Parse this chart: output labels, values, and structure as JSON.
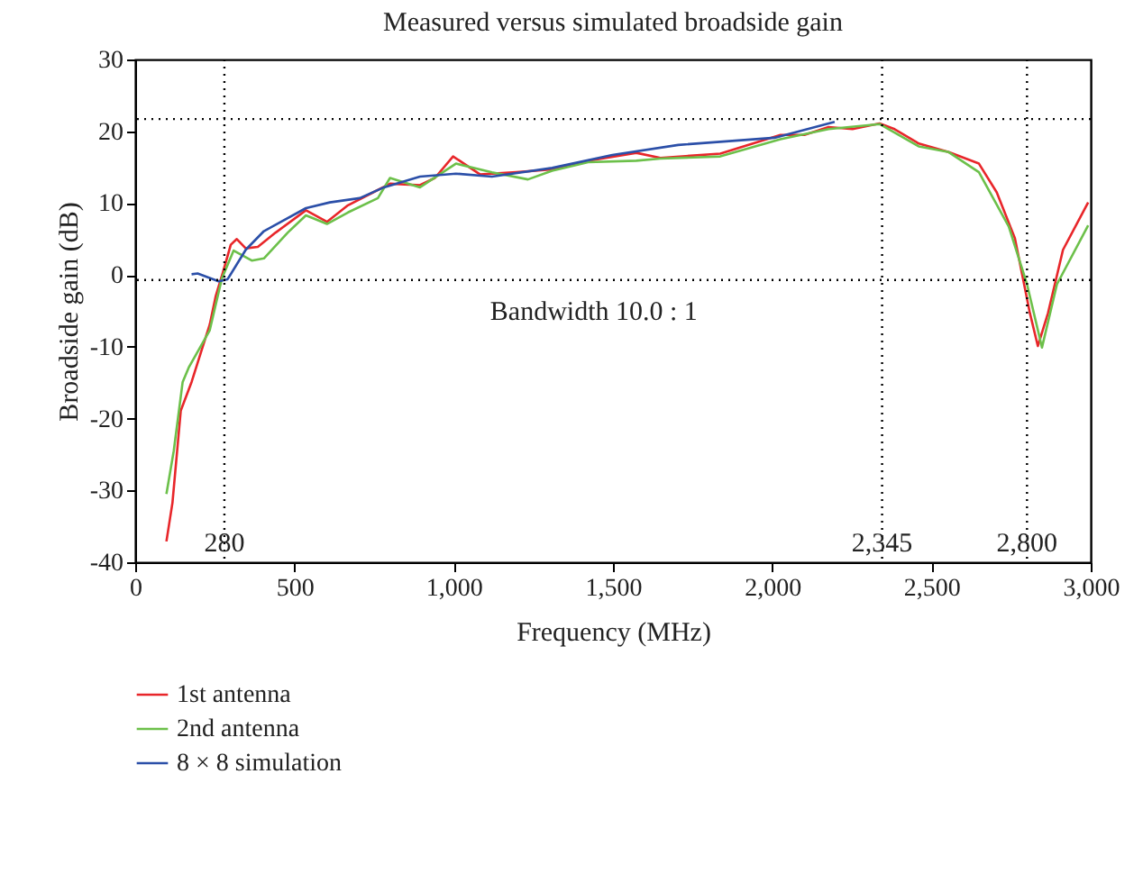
{
  "chart_data": {
    "type": "line",
    "title": "Measured versus simulated broadside gain",
    "xlabel": "Frequency (MHz)",
    "ylabel": "Broadside gain (dB)",
    "xlim": [
      0,
      3000
    ],
    "ylim": [
      -40,
      30
    ],
    "xticks": [
      0,
      500,
      {
        "value": 1000,
        "label": "1,000"
      },
      {
        "value": 1500,
        "label": "1,500"
      },
      {
        "value": 2000,
        "label": "2,000"
      },
      {
        "value": 2500,
        "label": "2,500"
      },
      {
        "value": 3000,
        "label": "3,000"
      }
    ],
    "yticks": [
      -40,
      -30,
      -20,
      -10,
      0,
      10,
      20,
      30
    ],
    "grid": false,
    "legend": "bottom left",
    "line_style": "solid",
    "series": [
      {
        "name": "1st antenna",
        "color": "#e8262a",
        "x": [
          98,
          117,
          143,
          177,
          234,
          253,
          275,
          300,
          319,
          347,
          385,
          441,
          536,
          602,
          668,
          743,
          800,
          894,
          941,
          998,
          1083,
          1196,
          1309,
          1422,
          1573,
          1649,
          1837,
          2026,
          2101,
          2177,
          2252,
          2337,
          2384,
          2460,
          2554,
          2649,
          2705,
          2762,
          2809,
          2834,
          2866,
          2913,
          2992
        ],
        "values": [
          -37.1,
          -31.7,
          -18.9,
          -14.9,
          -6.9,
          -2.9,
          0.3,
          4.2,
          5.0,
          3.7,
          3.9,
          5.9,
          9.0,
          7.4,
          9.7,
          11.4,
          12.7,
          12.5,
          13.5,
          16.5,
          14.0,
          14.3,
          14.7,
          15.9,
          17.0,
          16.3,
          16.9,
          19.5,
          19.5,
          20.6,
          20.3,
          21.1,
          20.3,
          18.3,
          17.1,
          15.5,
          11.5,
          5.1,
          -5.3,
          -9.9,
          -5.3,
          3.5,
          10.1
        ]
      },
      {
        "name": "2nd antenna",
        "color": "#6cc04a",
        "x": [
          98,
          121,
          149,
          168,
          234,
          272,
          309,
          366,
          404,
          479,
          536,
          602,
          668,
          762,
          800,
          894,
          1007,
          1120,
          1233,
          1309,
          1422,
          1573,
          1649,
          1837,
          2026,
          2177,
          2337,
          2460,
          2554,
          2649,
          2743,
          2800,
          2847,
          2894,
          2992
        ],
        "values": [
          -30.5,
          -24.5,
          -14.9,
          -12.9,
          -7.7,
          -0.5,
          3.4,
          2.0,
          2.3,
          5.9,
          8.3,
          7.1,
          8.7,
          10.7,
          13.5,
          12.2,
          15.5,
          14.3,
          13.3,
          14.5,
          15.7,
          15.9,
          16.2,
          16.5,
          18.9,
          20.3,
          21.0,
          17.9,
          17.1,
          14.3,
          6.7,
          -1.3,
          -10.1,
          -1.3,
          6.9
        ]
      },
      {
        "name": "8 × 8 simulation",
        "color": "#2b4fa8",
        "x": [
          177,
          196,
          262,
          290,
          347,
          404,
          536,
          611,
          705,
          781,
          894,
          1007,
          1120,
          1309,
          1498,
          1705,
          2007,
          2196
        ],
        "values": [
          0.1,
          0.2,
          -0.9,
          -0.6,
          3.5,
          6.1,
          9.3,
          10.1,
          10.7,
          12.2,
          13.7,
          14.1,
          13.7,
          14.9,
          16.7,
          18.1,
          19.1,
          21.3
        ]
      }
    ],
    "ref_lines": [
      {
        "axis": "x",
        "value": 280,
        "label": "280",
        "line_style": "dotted",
        "color": "#000000"
      },
      {
        "axis": "x",
        "value": 2345,
        "label": "2,345",
        "line_style": "dotted",
        "color": "#000000"
      },
      {
        "axis": "x",
        "value": 2800,
        "label": "2,800",
        "line_style": "dotted",
        "color": "#000000"
      },
      {
        "axis": "y",
        "value": 21.7,
        "label": null,
        "line_style": "dotted",
        "color": "#000000"
      },
      {
        "axis": "y",
        "value": -0.7,
        "label": null,
        "line_style": "dotted",
        "color": "#000000"
      }
    ],
    "annotations": [
      "Bandwidth 10.0 : 1"
    ]
  }
}
